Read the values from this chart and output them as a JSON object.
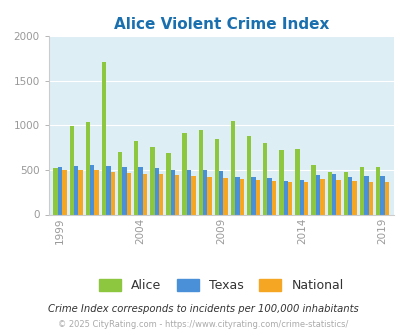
{
  "title": "Alice Violent Crime Index",
  "years": [
    1999,
    2000,
    2001,
    2002,
    2003,
    2004,
    2005,
    2006,
    2007,
    2008,
    2009,
    2010,
    2011,
    2012,
    2013,
    2014,
    2015,
    2016,
    2017,
    2018,
    2019,
    2020
  ],
  "alice": [
    520,
    990,
    1040,
    1710,
    700,
    830,
    760,
    690,
    920,
    950,
    850,
    1050,
    880,
    800,
    720,
    740,
    550,
    475,
    480,
    530,
    530,
    0
  ],
  "texas": [
    530,
    545,
    560,
    545,
    535,
    530,
    520,
    505,
    495,
    495,
    490,
    420,
    420,
    415,
    380,
    385,
    440,
    455,
    420,
    435,
    430,
    0
  ],
  "national": [
    505,
    500,
    495,
    475,
    470,
    460,
    455,
    445,
    430,
    420,
    410,
    395,
    385,
    375,
    365,
    370,
    395,
    390,
    375,
    370,
    370,
    0
  ],
  "alice_color": "#8dc63f",
  "texas_color": "#4a90d9",
  "national_color": "#f5a623",
  "bg_color": "#deeef5",
  "title_color": "#1a6faf",
  "footer_note": "Crime Index corresponds to incidents per 100,000 inhabitants",
  "copyright": "© 2025 CityRating.com - https://www.cityrating.com/crime-statistics/",
  "xticks": [
    1999,
    2004,
    2009,
    2014,
    2019
  ],
  "ylim": [
    0,
    2000
  ],
  "yticks": [
    0,
    500,
    1000,
    1500,
    2000
  ]
}
